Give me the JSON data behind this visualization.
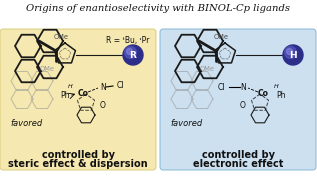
{
  "title": "Origins of enantioselectivity with BINOL-Cp ligands",
  "bg_color_left": "#f5e8b0",
  "bg_color_right": "#cce0f0",
  "bg_color_outer": "#ffffff",
  "label_left_line1": "controlled by",
  "label_left_line2": "steric effect & dispersion",
  "label_right_line1": "controlled by",
  "label_right_line2": "electronic effect",
  "label_favored": "favored",
  "r_annotation": "R = ᵗBu, ᶦPr",
  "r_label": "R",
  "h_label": "H",
  "sphere_dark": "#2d2d8a",
  "sphere_mid": "#5555bb",
  "sphere_light": "#8888dd",
  "title_fontsize": 7.2,
  "bold_fontsize": 7.0,
  "favored_fontsize": 6.0,
  "annot_fontsize": 5.5,
  "chem_fontsize": 5.5,
  "text_color": "#111111",
  "dark_line": "#1a1a1a",
  "gray_line": "#999999",
  "light_gray": "#cccccc"
}
